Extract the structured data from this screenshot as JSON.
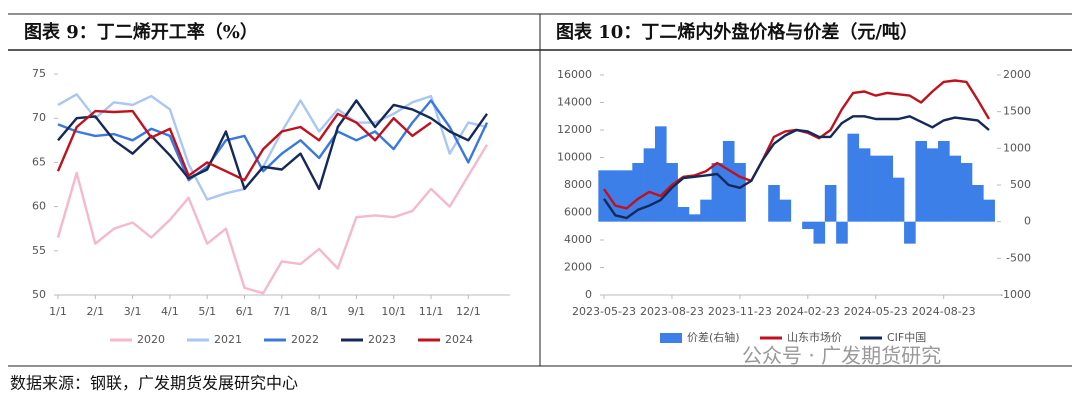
{
  "chart_data": [
    {
      "type": "line",
      "title": "图表 9：丁二烯开工率（%）",
      "categories": [
        "1/1",
        null,
        "2/1",
        null,
        "3/1",
        null,
        "4/1",
        null,
        "5/1",
        null,
        "6/1",
        null,
        "7/1",
        null,
        "8/1",
        null,
        "9/1",
        null,
        "10/1",
        null,
        "11/1",
        null,
        "12/1",
        null
      ],
      "series": [
        {
          "name": "2020",
          "color": "#f6b8cc",
          "values": [
            56.5,
            63.8,
            55.8,
            57.5,
            58.2,
            56.5,
            58.5,
            61,
            55.8,
            57.5,
            50.8,
            50.2,
            53.8,
            53.5,
            55.2,
            53,
            58.8,
            59,
            58.8,
            59.5,
            62,
            60,
            63.5,
            67
          ]
        },
        {
          "name": "2021",
          "color": "#a9c6f5",
          "values": [
            71.5,
            72.7,
            70,
            71.8,
            71.5,
            72.5,
            71,
            64.8,
            60.8,
            61.5,
            62,
            64.5,
            68.5,
            72,
            68.5,
            71,
            69.5,
            69.5,
            70.5,
            71.8,
            72.5,
            66,
            69.5,
            69
          ]
        },
        {
          "name": "2022",
          "color": "#3a78e0",
          "values": [
            69.3,
            68.5,
            68,
            68.2,
            67.5,
            68.8,
            68,
            63,
            64.5,
            67.5,
            68,
            64,
            66,
            67.5,
            65.5,
            68.5,
            67.5,
            68.5,
            66.5,
            69.5,
            72,
            69,
            65,
            69.5
          ]
        },
        {
          "name": "2023",
          "color": "#14285a",
          "values": [
            67.5,
            70,
            70.2,
            67.5,
            66,
            68,
            65.8,
            63.2,
            64.2,
            68.5,
            62,
            64.5,
            64.2,
            66,
            62,
            69,
            72,
            69,
            71.5,
            71,
            70,
            68.5,
            67.5,
            70.5
          ]
        },
        {
          "name": "2024",
          "color": "#c0121e",
          "values": [
            64,
            69,
            70.8,
            70.7,
            70.8,
            67.8,
            68.8,
            63.5,
            65,
            64,
            63,
            66.5,
            68.5,
            69,
            67.5,
            70.5,
            69.5,
            67.5,
            70,
            68,
            69.5,
            null,
            null,
            null
          ]
        }
      ],
      "ylim": [
        50,
        75
      ],
      "yticks": [
        50,
        55,
        60,
        65,
        70,
        75
      ]
    },
    {
      "type": "line",
      "title": "图表 10：丁二烯内外盘价格与价差（元/吨）",
      "categories": [
        "2023-05-23",
        null,
        null,
        null,
        null,
        null,
        "2023-08-23",
        null,
        null,
        null,
        null,
        null,
        "2023-11-23",
        null,
        null,
        null,
        null,
        null,
        "2024-02-23",
        null,
        null,
        null,
        null,
        null,
        "2024-05-23",
        null,
        null,
        null,
        null,
        null,
        "2024-08-23",
        null,
        null,
        null,
        null
      ],
      "series": [
        {
          "name": "价差(右轴)",
          "type": "area",
          "axis": "y2",
          "color": "#3d7fe8",
          "values": [
            700,
            700,
            700,
            800,
            1000,
            1300,
            800,
            200,
            100,
            300,
            800,
            1100,
            800,
            0,
            0,
            500,
            300,
            0,
            -100,
            -300,
            500,
            -300,
            1200,
            1000,
            900,
            900,
            600,
            -300,
            1100,
            1000,
            1100,
            900,
            800,
            500,
            300
          ]
        },
        {
          "name": "山东市场价",
          "color": "#c0121e",
          "values": [
            7700,
            6500,
            6300,
            7000,
            7500,
            7200,
            8000,
            8600,
            8700,
            9000,
            9600,
            9100,
            8600,
            8300,
            9800,
            11500,
            11900,
            12000,
            11800,
            11400,
            12000,
            13500,
            14700,
            14800,
            14500,
            14700,
            14600,
            14500,
            14000,
            14800,
            15500,
            15600,
            15500,
            14200,
            12800
          ]
        },
        {
          "name": "CIF中国",
          "color": "#14285a",
          "values": [
            7000,
            5800,
            5600,
            6200,
            6500,
            6900,
            7800,
            8500,
            8600,
            8700,
            8800,
            8000,
            7800,
            8300,
            9800,
            11000,
            11600,
            12000,
            11900,
            11500,
            11500,
            12500,
            13000,
            13000,
            12800,
            12800,
            12800,
            13000,
            12600,
            12200,
            12700,
            12900,
            12800,
            12700,
            12000
          ]
        }
      ],
      "ylim": [
        0,
        16000
      ],
      "yticks": [
        0,
        2000,
        4000,
        6000,
        8000,
        10000,
        12000,
        14000,
        16000
      ],
      "y2lim": [
        -1000,
        2000
      ],
      "y2ticks": [
        -1000,
        -500,
        0,
        500,
        1000,
        1500,
        2000
      ]
    }
  ],
  "source": "数据来源：钢联，广发期货发展研究中心",
  "watermark": "公众号 · 广发期货研究"
}
